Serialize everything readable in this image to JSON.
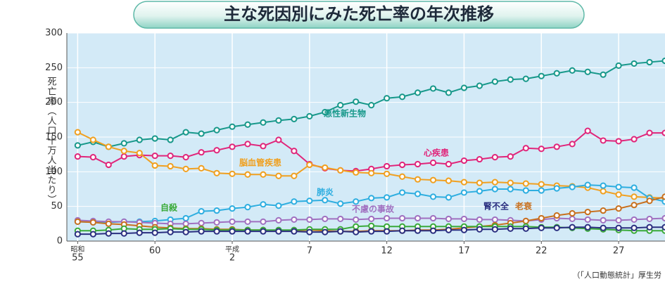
{
  "chart_data": {
    "type": "line",
    "title": "主な死因別にみた死亡率の年次推移",
    "y_label": "死亡率（人口十万人当たり）",
    "source": "（「人口動態統計」厚生労",
    "x": [
      1980,
      1981,
      1982,
      1983,
      1984,
      1985,
      1986,
      1987,
      1988,
      1989,
      1990,
      1991,
      1992,
      1993,
      1994,
      1995,
      1996,
      1997,
      1998,
      1999,
      2000,
      2001,
      2002,
      2003,
      2004,
      2005,
      2006,
      2007,
      2008,
      2009,
      2010,
      2011,
      2012,
      2013,
      2014,
      2015,
      2016,
      2017,
      2018
    ],
    "xlim": [
      1979.3,
      2018
    ],
    "xticks": [
      {
        "value": 1980,
        "label": "55",
        "era": "昭和"
      },
      {
        "value": 1985,
        "label": "60"
      },
      {
        "value": 1990,
        "label": "2",
        "era": "平成"
      },
      {
        "value": 1995,
        "label": "7"
      },
      {
        "value": 2000,
        "label": "12"
      },
      {
        "value": 2005,
        "label": "17"
      },
      {
        "value": 2010,
        "label": "22"
      },
      {
        "value": 2015,
        "label": "27"
      }
    ],
    "ylim": [
      0,
      300
    ],
    "yticks": [
      0,
      50,
      100,
      150,
      200,
      250,
      300
    ],
    "series": [
      {
        "name": "悪性新生物",
        "color": "#17988a",
        "values": [
          138,
          143,
          136,
          141,
          146,
          148,
          146,
          157,
          155,
          160,
          165,
          168,
          171,
          174,
          176,
          180,
          186,
          196,
          201,
          196,
          206,
          208,
          214,
          220,
          214,
          221,
          224,
          230,
          233,
          234,
          238,
          242,
          246,
          244,
          240,
          253,
          256,
          258,
          260
        ]
      },
      {
        "name": "心疾患",
        "color": "#e0257a",
        "values": [
          122,
          121,
          110,
          122,
          124,
          123,
          123,
          121,
          128,
          131,
          136,
          140,
          137,
          146,
          130,
          111,
          105,
          102,
          101,
          104,
          108,
          110,
          111,
          113,
          111,
          116,
          118,
          121,
          122,
          134,
          133,
          136,
          140,
          159,
          145,
          144,
          147,
          156,
          156
        ]
      },
      {
        "name": "脳血管疾患",
        "color": "#f0a020",
        "values": [
          157,
          146,
          136,
          130,
          127,
          109,
          108,
          104,
          105,
          98,
          97,
          96,
          96,
          94,
          94,
          110,
          106,
          102,
          99,
          98,
          97,
          93,
          89,
          88,
          87,
          85,
          84,
          85,
          84,
          83,
          82,
          80,
          79,
          77,
          72,
          67,
          64,
          63,
          62
        ]
      },
      {
        "name": "肺炎",
        "color": "#2eaee0",
        "values": [
          28,
          27,
          27,
          28,
          28,
          29,
          31,
          33,
          43,
          44,
          47,
          49,
          53,
          51,
          57,
          58,
          59,
          54,
          57,
          62,
          63,
          70,
          68,
          64,
          63,
          70,
          72,
          75,
          75,
          73,
          73,
          76,
          78,
          81,
          80,
          78,
          77,
          62,
          57
        ]
      },
      {
        "name": "不慮の事故",
        "color": "#a070c0",
        "values": [
          30,
          29,
          28,
          28,
          27,
          26,
          25,
          25,
          26,
          27,
          28,
          28,
          28,
          30,
          31,
          31,
          32,
          32,
          31,
          32,
          33,
          33,
          33,
          33,
          32,
          32,
          31,
          31,
          30,
          29,
          31,
          33,
          32,
          31,
          30,
          30,
          31,
          32,
          33
        ]
      },
      {
        "name": "老衰",
        "color": "#c8701e",
        "values": [
          28,
          27,
          25,
          24,
          22,
          20,
          19,
          18,
          18,
          17,
          17,
          16,
          16,
          15,
          15,
          16,
          15,
          14,
          14,
          15,
          15,
          15,
          16,
          16,
          17,
          19,
          21,
          23,
          26,
          29,
          33,
          37,
          40,
          42,
          44,
          47,
          52,
          58,
          64
        ]
      },
      {
        "name": "自殺",
        "color": "#3aaa3a",
        "values": [
          15,
          15,
          16,
          18,
          17,
          17,
          18,
          17,
          17,
          16,
          16,
          16,
          16,
          16,
          16,
          17,
          17,
          17,
          21,
          22,
          21,
          21,
          21,
          21,
          21,
          21,
          21,
          21,
          21,
          21,
          20,
          20,
          19,
          18,
          17,
          16,
          15,
          15,
          15
        ]
      },
      {
        "name": "腎不全",
        "color": "#2a2f80",
        "values": [
          10,
          10,
          11,
          11,
          12,
          12,
          13,
          13,
          14,
          14,
          14,
          14,
          14,
          14,
          14,
          13,
          13,
          14,
          13,
          14,
          14,
          15,
          15,
          15,
          16,
          16,
          17,
          17,
          18,
          18,
          19,
          19,
          20,
          20,
          19,
          19,
          19,
          20,
          20
        ]
      }
    ]
  }
}
